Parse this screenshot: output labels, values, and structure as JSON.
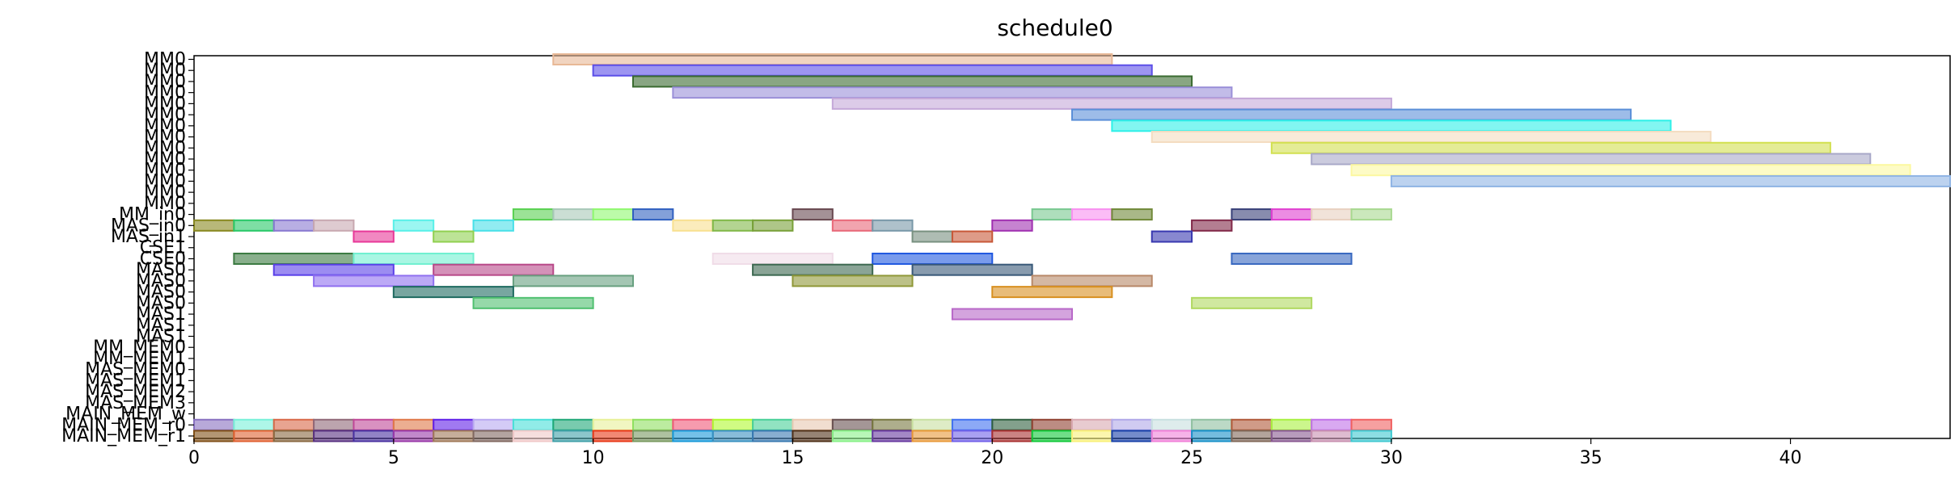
{
  "chart_data": {
    "type": "gantt",
    "title": "schedule0",
    "xlim": [
      0,
      44
    ],
    "x_ticks": [
      0,
      5,
      10,
      15,
      20,
      25,
      30,
      35,
      40
    ],
    "grid": false,
    "rows": [
      "MM0",
      "MM0",
      "MM0",
      "MM0",
      "MM0",
      "MM0",
      "MM0",
      "MM0",
      "MM0",
      "MM0",
      "MM0",
      "MM0",
      "MM0",
      "MM0",
      "MM_in0",
      "MAS_in0",
      "MAS_in1",
      "CSE1",
      "CSE0",
      "MAS0",
      "MAS0",
      "MAS0",
      "MAS0",
      "MAS1",
      "MAS1",
      "MAS1",
      "MM_MEM0",
      "MM_MEM1",
      "MAS_MEM0",
      "MAS_MEM1",
      "MAS_MEM2",
      "MAS_MEM3",
      "MAIN_MEM_w",
      "MAIN_MEM_r0",
      "MAIN_MEM_r1"
    ],
    "bars": [
      {
        "row": 0,
        "start": 9,
        "end": 23,
        "color": "#e8b896"
      },
      {
        "row": 1,
        "start": 10,
        "end": 24,
        "color": "#5b4ee8"
      },
      {
        "row": 2,
        "start": 11,
        "end": 25,
        "color": "#3a6b30"
      },
      {
        "row": 3,
        "start": 12,
        "end": 26,
        "color": "#9a8fd8"
      },
      {
        "row": 4,
        "start": 16,
        "end": 30,
        "color": "#c4a8d8"
      },
      {
        "row": 5,
        "start": 22,
        "end": 36,
        "color": "#5b8fd8"
      },
      {
        "row": 6,
        "start": 23,
        "end": 37,
        "color": "#2ef0e8"
      },
      {
        "row": 7,
        "start": 24,
        "end": 38,
        "color": "#f4dcc0"
      },
      {
        "row": 8,
        "start": 27,
        "end": 41,
        "color": "#d2e050"
      },
      {
        "row": 9,
        "start": 28,
        "end": 42,
        "color": "#a8a8c8"
      },
      {
        "row": 10,
        "start": 29,
        "end": 43,
        "color": "#fcf8a0"
      },
      {
        "row": 11,
        "start": 30,
        "end": 44,
        "color": "#8fb4e4"
      },
      {
        "row": 14,
        "start": 8,
        "end": 9,
        "color": "#58d050"
      },
      {
        "row": 14,
        "start": 9,
        "end": 10,
        "color": "#a8c8b8"
      },
      {
        "row": 14,
        "start": 10,
        "end": 11,
        "color": "#90f870"
      },
      {
        "row": 14,
        "start": 11,
        "end": 12,
        "color": "#3060c0"
      },
      {
        "row": 14,
        "start": 15,
        "end": 16,
        "color": "#684850"
      },
      {
        "row": 14,
        "start": 21,
        "end": 22,
        "color": "#78c890"
      },
      {
        "row": 14,
        "start": 22,
        "end": 23,
        "color": "#f890f0"
      },
      {
        "row": 14,
        "start": 23,
        "end": 24,
        "color": "#708838"
      },
      {
        "row": 14,
        "start": 26,
        "end": 27,
        "color": "#384078"
      },
      {
        "row": 14,
        "start": 27,
        "end": 28,
        "color": "#e040d0"
      },
      {
        "row": 14,
        "start": 28,
        "end": 29,
        "color": "#e8d0c0"
      },
      {
        "row": 14,
        "start": 29,
        "end": 30,
        "color": "#a8d890"
      },
      {
        "row": 15,
        "start": 0,
        "end": 1,
        "color": "#888820"
      },
      {
        "row": 15,
        "start": 1,
        "end": 2,
        "color": "#28c868"
      },
      {
        "row": 15,
        "start": 2,
        "end": 3,
        "color": "#8878d0"
      },
      {
        "row": 15,
        "start": 3,
        "end": 4,
        "color": "#c8a8b0"
      },
      {
        "row": 15,
        "start": 5,
        "end": 6,
        "color": "#58f0e8"
      },
      {
        "row": 15,
        "start": 7,
        "end": 8,
        "color": "#48e0e8"
      },
      {
        "row": 15,
        "start": 12,
        "end": 13,
        "color": "#f8e090"
      },
      {
        "row": 15,
        "start": 13,
        "end": 14,
        "color": "#80b848"
      },
      {
        "row": 15,
        "start": 14,
        "end": 15,
        "color": "#78a038"
      },
      {
        "row": 15,
        "start": 16,
        "end": 17,
        "color": "#e86878"
      },
      {
        "row": 15,
        "start": 17,
        "end": 18,
        "color": "#7898a8"
      },
      {
        "row": 15,
        "start": 20,
        "end": 21,
        "color": "#a030b0"
      },
      {
        "row": 15,
        "start": 25,
        "end": 26,
        "color": "#802848"
      },
      {
        "row": 16,
        "start": 4,
        "end": 5,
        "color": "#e83898"
      },
      {
        "row": 16,
        "start": 6,
        "end": 7,
        "color": "#90d050"
      },
      {
        "row": 16,
        "start": 18,
        "end": 19,
        "color": "#789080"
      },
      {
        "row": 16,
        "start": 19,
        "end": 20,
        "color": "#c85838"
      },
      {
        "row": 16,
        "start": 24,
        "end": 25,
        "color": "#3838b0"
      },
      {
        "row": 18,
        "start": 1,
        "end": 4,
        "color": "#3a7a40"
      },
      {
        "row": 18,
        "start": 4,
        "end": 7,
        "color": "#70f0d0"
      },
      {
        "row": 18,
        "start": 13,
        "end": 16,
        "color": "#f0dce8"
      },
      {
        "row": 18,
        "start": 17,
        "end": 20,
        "color": "#2058e0"
      },
      {
        "row": 18,
        "start": 26,
        "end": 29,
        "color": "#3868c0"
      },
      {
        "row": 19,
        "start": 2,
        "end": 5,
        "color": "#5a40e8"
      },
      {
        "row": 19,
        "start": 6,
        "end": 9,
        "color": "#b84888"
      },
      {
        "row": 19,
        "start": 14,
        "end": 17,
        "color": "#3c6850"
      },
      {
        "row": 19,
        "start": 18,
        "end": 21,
        "color": "#385878"
      },
      {
        "row": 20,
        "start": 3,
        "end": 6,
        "color": "#9070f0"
      },
      {
        "row": 20,
        "start": 8,
        "end": 11,
        "color": "#68a080"
      },
      {
        "row": 20,
        "start": 15,
        "end": 18,
        "color": "#909838"
      },
      {
        "row": 20,
        "start": 21,
        "end": 24,
        "color": "#b88868"
      },
      {
        "row": 21,
        "start": 5,
        "end": 8,
        "color": "#1e6a60"
      },
      {
        "row": 21,
        "start": 20,
        "end": 23,
        "color": "#d89020"
      },
      {
        "row": 22,
        "start": 7,
        "end": 10,
        "color": "#50c070"
      },
      {
        "row": 22,
        "start": 25,
        "end": 28,
        "color": "#b0d860"
      },
      {
        "row": 23,
        "start": 19,
        "end": 22,
        "color": "#b868c8"
      },
      {
        "row": 33,
        "start": 0,
        "end": 1,
        "color": "#8870c0"
      },
      {
        "row": 33,
        "start": 1,
        "end": 2,
        "color": "#78f0d8"
      },
      {
        "row": 33,
        "start": 2,
        "end": 3,
        "color": "#d86848"
      },
      {
        "row": 33,
        "start": 3,
        "end": 4,
        "color": "#906878"
      },
      {
        "row": 33,
        "start": 4,
        "end": 5,
        "color": "#c04898"
      },
      {
        "row": 33,
        "start": 5,
        "end": 6,
        "color": "#e07848"
      },
      {
        "row": 33,
        "start": 6,
        "end": 7,
        "color": "#6020e8"
      },
      {
        "row": 33,
        "start": 7,
        "end": 8,
        "color": "#b8a8f0"
      },
      {
        "row": 33,
        "start": 8,
        "end": 9,
        "color": "#48e0d8"
      },
      {
        "row": 33,
        "start": 9,
        "end": 10,
        "color": "#20a878"
      },
      {
        "row": 33,
        "start": 10,
        "end": 11,
        "color": "#e8f098"
      },
      {
        "row": 33,
        "start": 11,
        "end": 12,
        "color": "#90e060"
      },
      {
        "row": 33,
        "start": 12,
        "end": 13,
        "color": "#f05878"
      },
      {
        "row": 33,
        "start": 13,
        "end": 14,
        "color": "#b0f830"
      },
      {
        "row": 33,
        "start": 14,
        "end": 15,
        "color": "#48d098"
      },
      {
        "row": 33,
        "start": 15,
        "end": 16,
        "color": "#e8c8b0"
      },
      {
        "row": 33,
        "start": 16,
        "end": 17,
        "color": "#685050"
      },
      {
        "row": 33,
        "start": 17,
        "end": 18,
        "color": "#787840"
      },
      {
        "row": 33,
        "start": 18,
        "end": 19,
        "color": "#c8e0a0"
      },
      {
        "row": 33,
        "start": 19,
        "end": 20,
        "color": "#4070f0"
      },
      {
        "row": 33,
        "start": 20,
        "end": 21,
        "color": "#306040"
      },
      {
        "row": 33,
        "start": 21,
        "end": 22,
        "color": "#904030"
      },
      {
        "row": 33,
        "start": 22,
        "end": 23,
        "color": "#d8a8b0"
      },
      {
        "row": 33,
        "start": 23,
        "end": 24,
        "color": "#b0a8e8"
      },
      {
        "row": 33,
        "start": 24,
        "end": 25,
        "color": "#c8e0e0"
      },
      {
        "row": 33,
        "start": 25,
        "end": 26,
        "color": "#90c0a0"
      },
      {
        "row": 33,
        "start": 26,
        "end": 27,
        "color": "#b05838"
      },
      {
        "row": 33,
        "start": 27,
        "end": 28,
        "color": "#a8f040"
      },
      {
        "row": 33,
        "start": 28,
        "end": 29,
        "color": "#c070e8"
      },
      {
        "row": 33,
        "start": 29,
        "end": 30,
        "color": "#f06060"
      },
      {
        "row": 34,
        "start": 0,
        "end": 1,
        "color": "#805018"
      },
      {
        "row": 34,
        "start": 1,
        "end": 2,
        "color": "#e06030"
      },
      {
        "row": 34,
        "start": 2,
        "end": 3,
        "color": "#886840"
      },
      {
        "row": 34,
        "start": 3,
        "end": 4,
        "color": "#583080"
      },
      {
        "row": 34,
        "start": 4,
        "end": 5,
        "color": "#4830a0"
      },
      {
        "row": 34,
        "start": 5,
        "end": 6,
        "color": "#9838a8"
      },
      {
        "row": 34,
        "start": 6,
        "end": 7,
        "color": "#a07858"
      },
      {
        "row": 34,
        "start": 7,
        "end": 8,
        "color": "#806860"
      },
      {
        "row": 34,
        "start": 8,
        "end": 9,
        "color": "#f0c8c8"
      },
      {
        "row": 34,
        "start": 9,
        "end": 10,
        "color": "#40a0a8"
      },
      {
        "row": 34,
        "start": 10,
        "end": 11,
        "color": "#e83818"
      },
      {
        "row": 34,
        "start": 11,
        "end": 12,
        "color": "#789860"
      },
      {
        "row": 34,
        "start": 12,
        "end": 13,
        "color": "#1898d8"
      },
      {
        "row": 34,
        "start": 13,
        "end": 14,
        "color": "#3890c0"
      },
      {
        "row": 34,
        "start": 14,
        "end": 15,
        "color": "#3878b0"
      },
      {
        "row": 34,
        "start": 15,
        "end": 16,
        "color": "#503018"
      },
      {
        "row": 34,
        "start": 16,
        "end": 17,
        "color": "#88f088"
      },
      {
        "row": 34,
        "start": 17,
        "end": 18,
        "color": "#6838a0"
      },
      {
        "row": 34,
        "start": 18,
        "end": 19,
        "color": "#e89838"
      },
      {
        "row": 34,
        "start": 19,
        "end": 20,
        "color": "#7060e8"
      },
      {
        "row": 34,
        "start": 20,
        "end": 21,
        "color": "#a83030"
      },
      {
        "row": 34,
        "start": 21,
        "end": 22,
        "color": "#10c838"
      },
      {
        "row": 34,
        "start": 22,
        "end": 23,
        "color": "#f8f078"
      },
      {
        "row": 34,
        "start": 23,
        "end": 24,
        "color": "#1840a8"
      },
      {
        "row": 34,
        "start": 24,
        "end": 25,
        "color": "#f080d8"
      },
      {
        "row": 34,
        "start": 25,
        "end": 26,
        "color": "#1890c8"
      },
      {
        "row": 34,
        "start": 26,
        "end": 27,
        "color": "#806858"
      },
      {
        "row": 34,
        "start": 27,
        "end": 28,
        "color": "#885890"
      },
      {
        "row": 34,
        "start": 28,
        "end": 29,
        "color": "#c890b0"
      },
      {
        "row": 34,
        "start": 29,
        "end": 30,
        "color": "#40c8d0"
      }
    ]
  }
}
